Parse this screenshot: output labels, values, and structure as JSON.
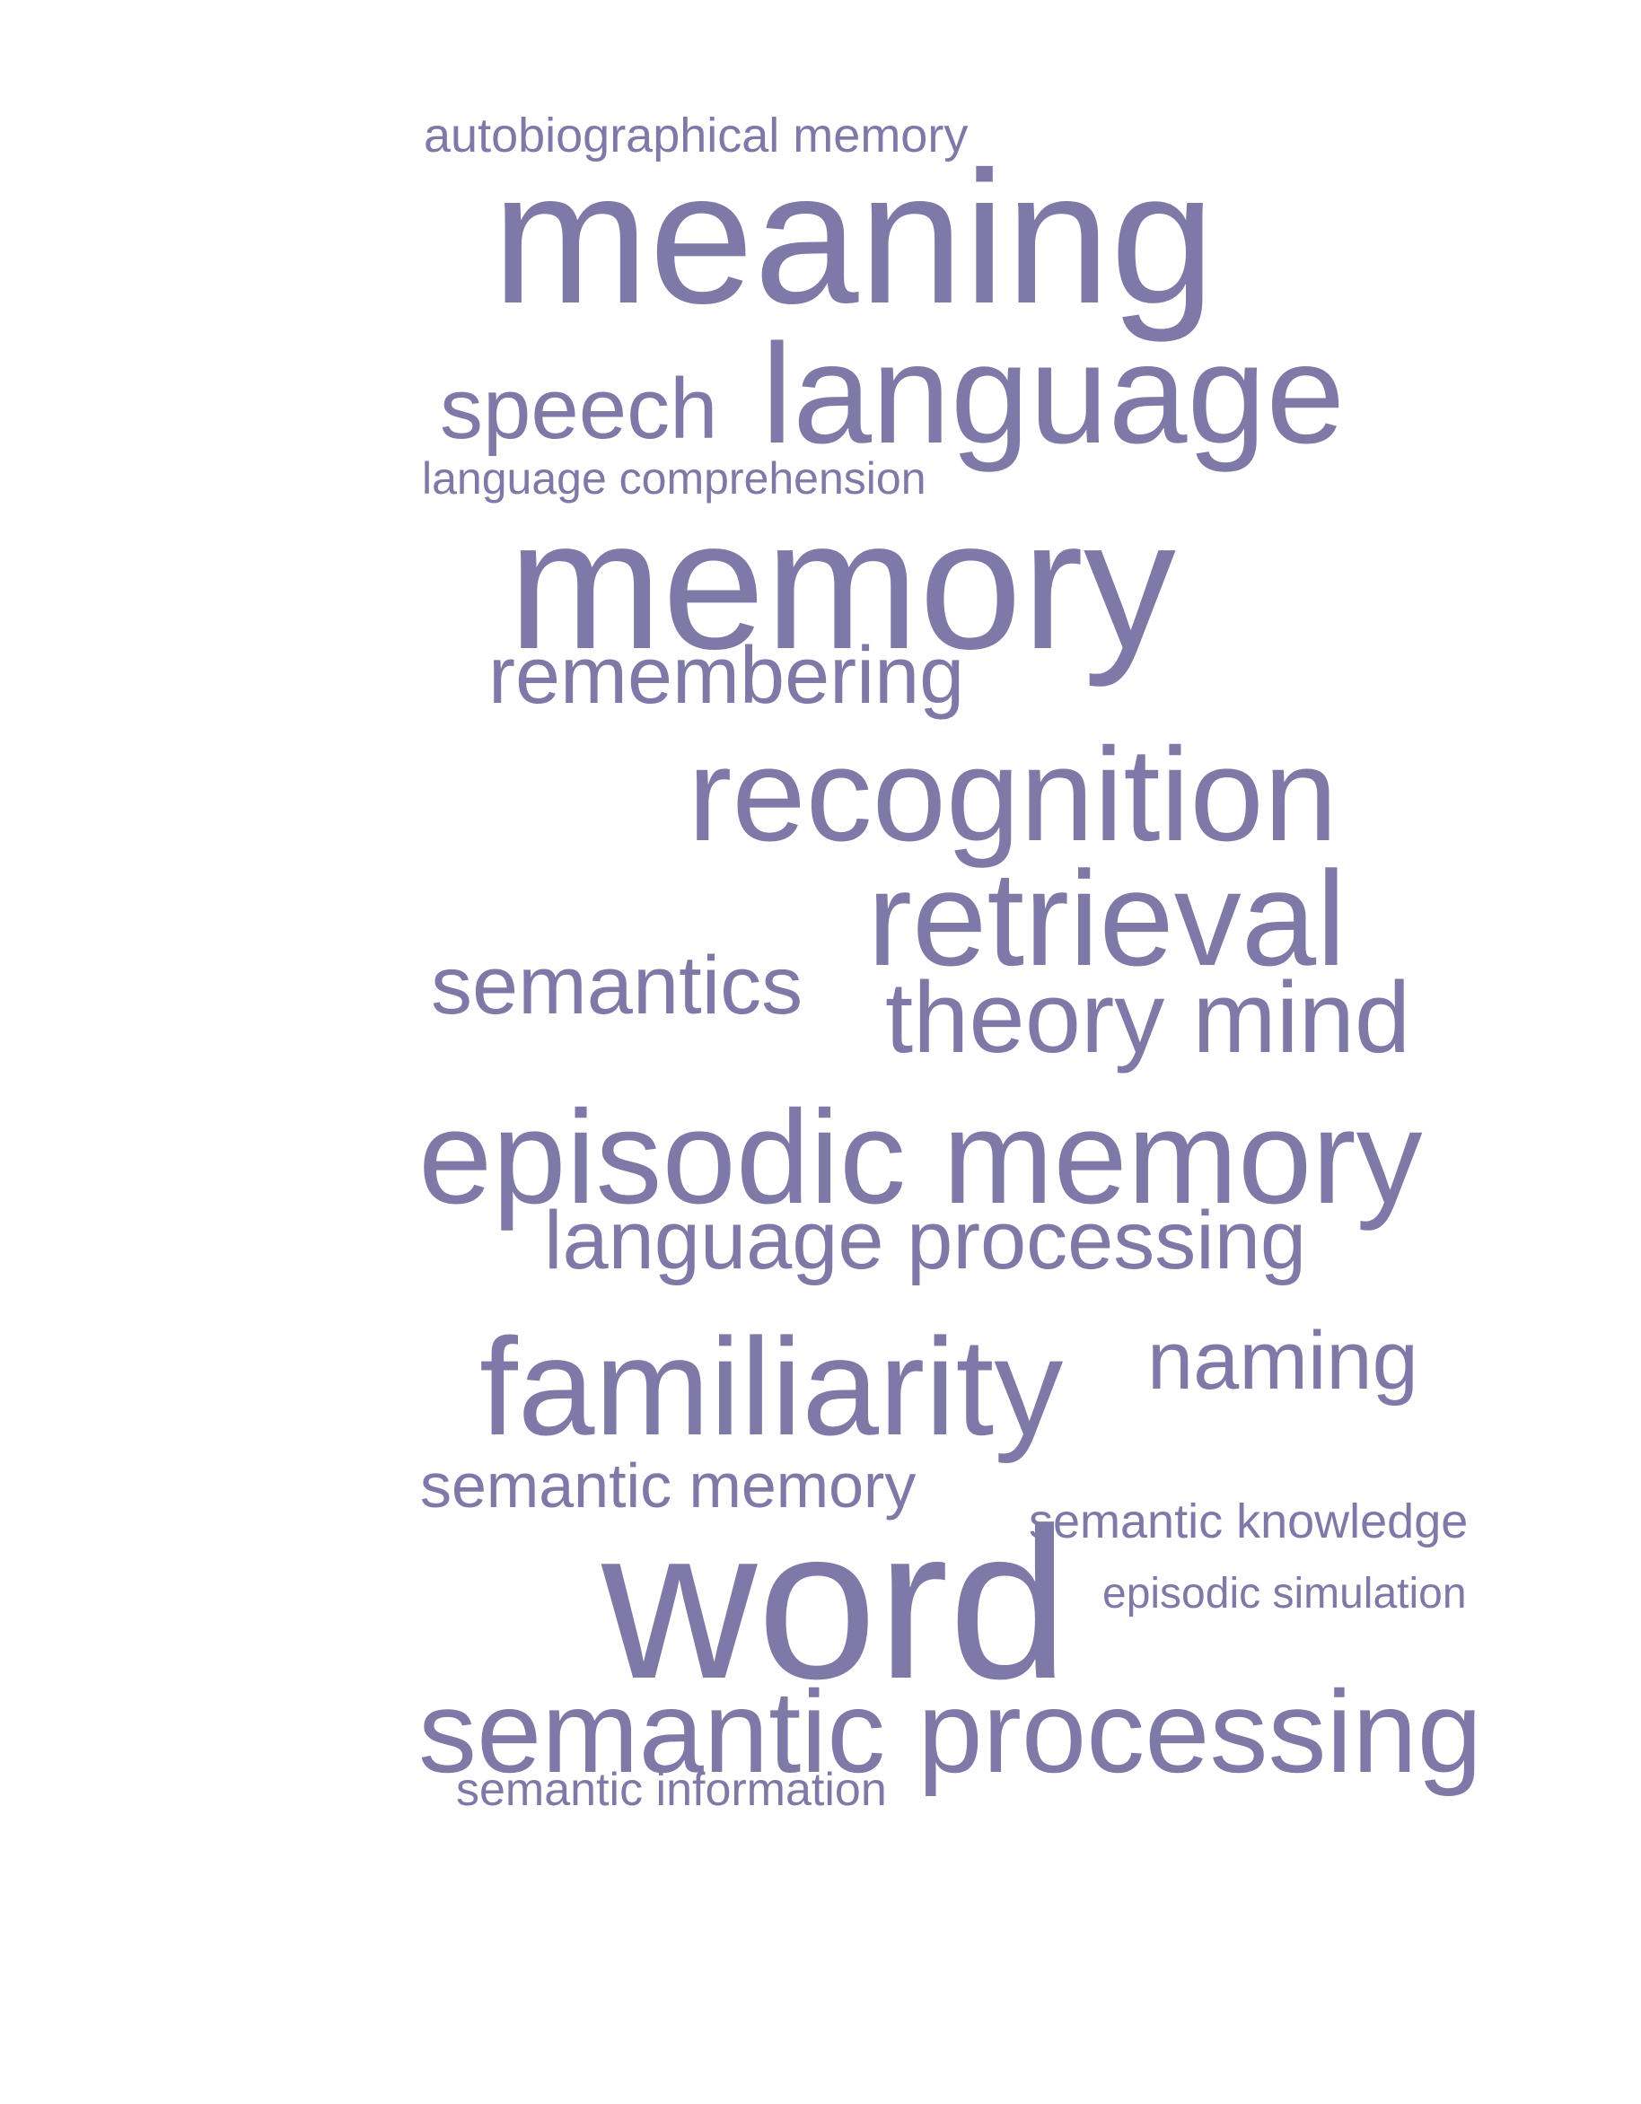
{
  "colors": {
    "word": "#7f79a7",
    "background": "#ffffff"
  },
  "cloud": {
    "words": {
      "autobiographical_memory": "autobiographical memory",
      "meaning": "meaning",
      "speech": "speech",
      "language": "language",
      "language_comprehension": "language comprehension",
      "memory": "memory",
      "remembering": "remembering",
      "recognition": "recognition",
      "retrieval": "retrieval",
      "semantics": "semantics",
      "theory_mind": "theory mind",
      "episodic_memory": "episodic memory",
      "language_processing": "language processing",
      "familiarity": "familiarity",
      "naming": "naming",
      "semantic_memory": "semantic memory",
      "semantic_knowledge": "semantic knowledge",
      "word": "word",
      "episodic_simulation": "episodic simulation",
      "semantic_processing": "semantic processing",
      "semantic_information": "semantic information"
    }
  }
}
